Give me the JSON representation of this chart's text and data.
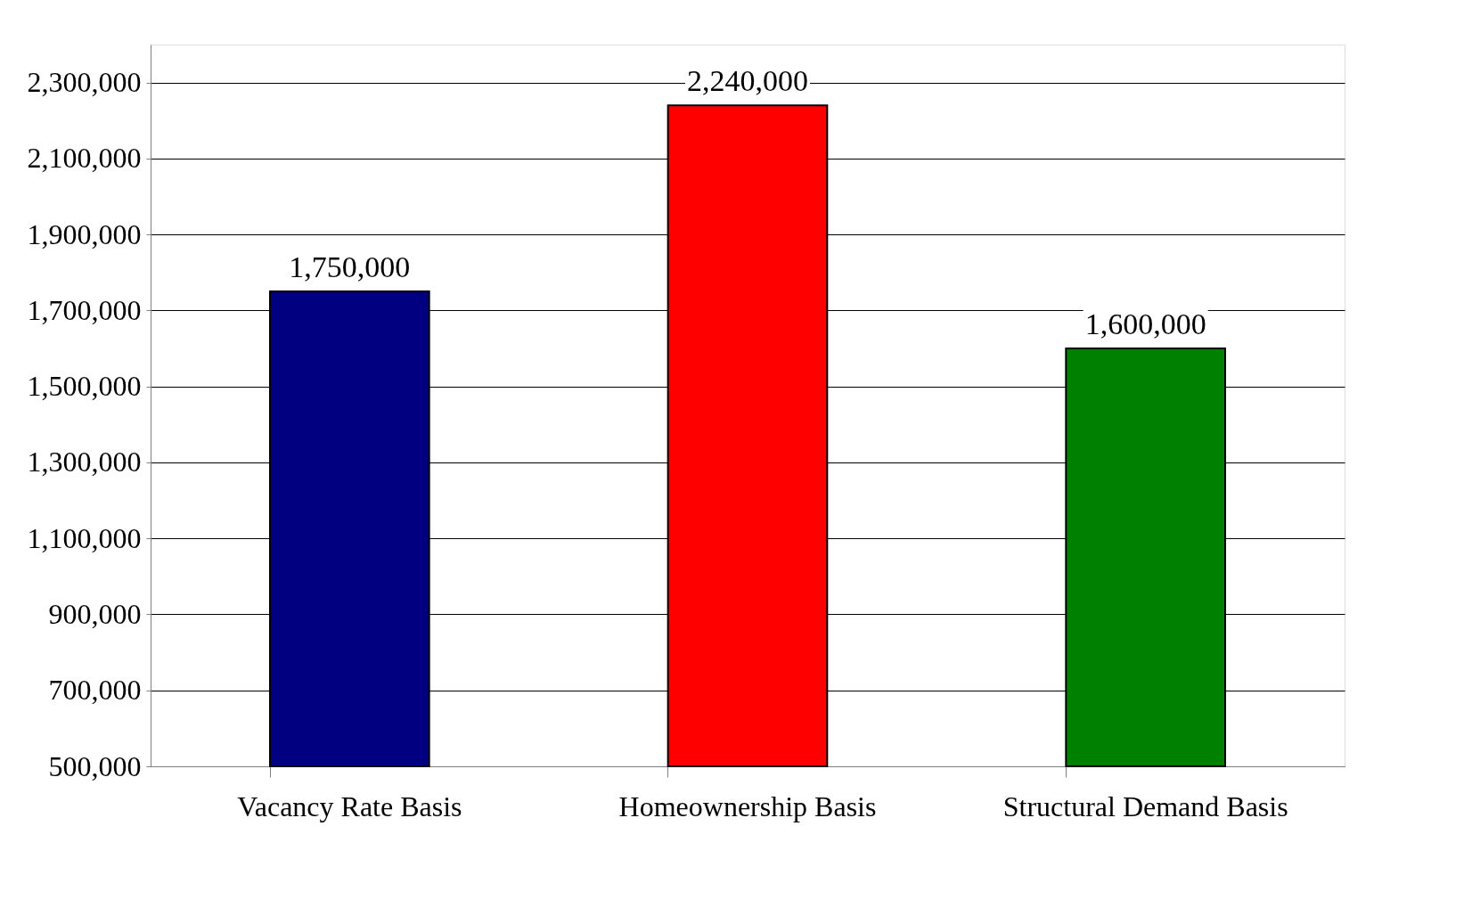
{
  "chart_data": {
    "type": "bar",
    "categories": [
      "Vacancy Rate Basis",
      "Homeownership Basis",
      "Structural Demand Basis"
    ],
    "values": [
      1750000,
      2240000,
      1600000
    ],
    "value_labels": [
      "1,750,000",
      "2,240,000",
      "1,600,000"
    ],
    "colors": [
      "#000080",
      "#ff0000",
      "#008000"
    ],
    "ylim": [
      500000,
      2400000
    ],
    "yticks": [
      {
        "value": 500000,
        "label": "500,000"
      },
      {
        "value": 700000,
        "label": "700,000"
      },
      {
        "value": 900000,
        "label": "900,000"
      },
      {
        "value": 1100000,
        "label": "1,100,000"
      },
      {
        "value": 1300000,
        "label": "1,300,000"
      },
      {
        "value": 1500000,
        "label": "1,500,000"
      },
      {
        "value": 1700000,
        "label": "1,700,000"
      },
      {
        "value": 1900000,
        "label": "1,900,000"
      },
      {
        "value": 2100000,
        "label": "2,100,000"
      },
      {
        "value": 2300000,
        "label": "2,300,000"
      }
    ],
    "grid": "y"
  }
}
